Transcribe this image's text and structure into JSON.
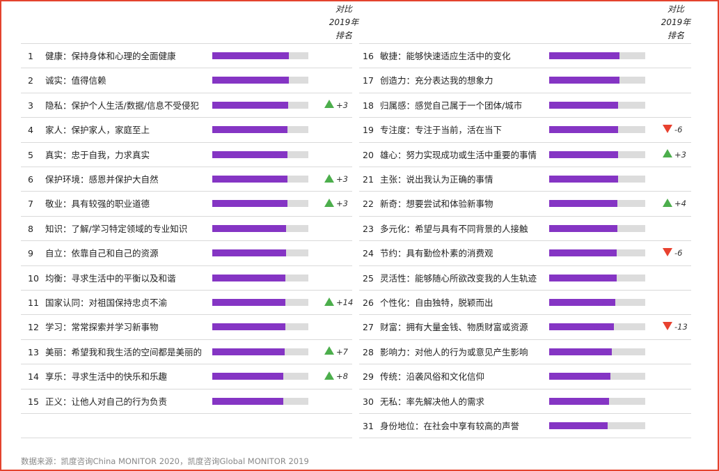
{
  "colors": {
    "bar": "#8535c4",
    "track": "#dcdcdc",
    "up": "#4cae4c",
    "down": "#e8412f",
    "border": "#e3432e"
  },
  "header": {
    "line1": "对比",
    "line2": "2019年",
    "line3": "排名"
  },
  "source": "数据来源：凯度咨询China MONITOR 2020，凯度咨询Global MONITOR 2019",
  "chart_data": {
    "type": "bar",
    "orientation": "horizontal",
    "value_unit": "%",
    "xlim": [
      0,
      100
    ],
    "rows": [
      {
        "rank": "1",
        "label": "健康：保持身体和心理的全面健康",
        "value": 80,
        "value_label": "80%",
        "change": "",
        "dir": ""
      },
      {
        "rank": "2",
        "label": "诚实：值得信赖",
        "value": 80,
        "value_label": "80%",
        "change": "",
        "dir": ""
      },
      {
        "rank": "3",
        "label": "隐私：保护个人生活/数据/信息不受侵犯",
        "value": 79,
        "value_label": "79%",
        "change": "+3",
        "dir": "up"
      },
      {
        "rank": "4",
        "label": "家人：保护家人，家庭至上",
        "value": 78,
        "value_label": "78%",
        "change": "",
        "dir": ""
      },
      {
        "rank": "5",
        "label": "真实：忠于自我，力求真实",
        "value": 78,
        "value_label": "78%",
        "change": "",
        "dir": ""
      },
      {
        "rank": "6",
        "label": "保护环境：感恩并保护大自然",
        "value": 78,
        "value_label": "78%",
        "change": "+3",
        "dir": "up"
      },
      {
        "rank": "7",
        "label": "敬业：具有较强的职业道德",
        "value": 78,
        "value_label": "78%",
        "change": "+3",
        "dir": "up"
      },
      {
        "rank": "8",
        "label": "知识：了解/学习特定领域的专业知识",
        "value": 77,
        "value_label": "77%",
        "change": "",
        "dir": ""
      },
      {
        "rank": "9",
        "label": "自立：依靠自己和自己的资源",
        "value": 77,
        "value_label": "77%",
        "change": "",
        "dir": ""
      },
      {
        "rank": "10",
        "label": "均衡：寻求生活中的平衡以及和谐",
        "value": 76,
        "value_label": "76%",
        "change": "",
        "dir": ""
      },
      {
        "rank": "11",
        "label": "国家认同：对祖国保持忠贞不渝",
        "value": 76,
        "value_label": "76%",
        "change": "+14",
        "dir": "up"
      },
      {
        "rank": "12",
        "label": "学习：常常探索并学习新事物",
        "value": 76,
        "value_label": "76%",
        "change": "",
        "dir": ""
      },
      {
        "rank": "13",
        "label": "美丽：希望我和我生活的空间都是美丽的",
        "value": 75,
        "value_label": "75%",
        "change": "+7",
        "dir": "up"
      },
      {
        "rank": "14",
        "label": "享乐：寻求生活中的快乐和乐趣",
        "value": 74,
        "value_label": "74%",
        "change": "+8",
        "dir": "up"
      },
      {
        "rank": "15",
        "label": "正义：让他人对自己的行为负责",
        "value": 74,
        "value_label": "74%",
        "change": "",
        "dir": ""
      },
      {
        "rank": "16",
        "label": "敏捷：能够快速适应生活中的变化",
        "value": 73,
        "value_label": "73%",
        "change": "",
        "dir": ""
      },
      {
        "rank": "17",
        "label": "创造力：充分表达我的想象力",
        "value": 73,
        "value_label": "73%",
        "change": "",
        "dir": ""
      },
      {
        "rank": "18",
        "label": "归属感：感觉自己属于一个团体/城市",
        "value": 72,
        "value_label": "72%",
        "change": "",
        "dir": ""
      },
      {
        "rank": "19",
        "label": "专注度：专注于当前，活在当下",
        "value": 72,
        "value_label": "72%",
        "change": "-6",
        "dir": "down"
      },
      {
        "rank": "20",
        "label": "雄心：努力实现成功或生活中重要的事情",
        "value": 72,
        "value_label": "72%",
        "change": "+3",
        "dir": "up"
      },
      {
        "rank": "21",
        "label": "主张：说出我认为正确的事情",
        "value": 72,
        "value_label": "72%",
        "change": "",
        "dir": ""
      },
      {
        "rank": "22",
        "label": "新奇：想要尝试和体验新事物",
        "value": 71,
        "value_label": "71%",
        "change": "+4",
        "dir": "up"
      },
      {
        "rank": "23",
        "label": "多元化：希望与具有不同背景的人接触",
        "value": 71,
        "value_label": "71%",
        "change": "",
        "dir": ""
      },
      {
        "rank": "24",
        "label": "节约：具有勤俭朴素的消费观",
        "value": 70,
        "value_label": "70%",
        "change": "-6",
        "dir": "down"
      },
      {
        "rank": "25",
        "label": "灵活性：能够随心所欲改变我的人生轨迹",
        "value": 70,
        "value_label": "70%",
        "change": "",
        "dir": ""
      },
      {
        "rank": "26",
        "label": "个性化：自由独特，脱颖而出",
        "value": 69,
        "value_label": "69%",
        "change": "",
        "dir": ""
      },
      {
        "rank": "27",
        "label": "财富：拥有大量金钱、物质财富或资源",
        "value": 67,
        "value_label": "67%",
        "change": "-13",
        "dir": "down"
      },
      {
        "rank": "28",
        "label": "影响力：对他人的行为或意见产生影响",
        "value": 65,
        "value_label": "65%",
        "change": "",
        "dir": ""
      },
      {
        "rank": "29",
        "label": "传统：沿袭风俗和文化信仰",
        "value": 64,
        "value_label": "64%",
        "change": "",
        "dir": ""
      },
      {
        "rank": "30",
        "label": "无私：率先解决他人的需求",
        "value": 62,
        "value_label": "62%",
        "change": "",
        "dir": ""
      },
      {
        "rank": "31",
        "label": "身份地位：在社会中享有较高的声誉",
        "value": 61,
        "value_label": "61%",
        "change": "",
        "dir": ""
      }
    ]
  }
}
